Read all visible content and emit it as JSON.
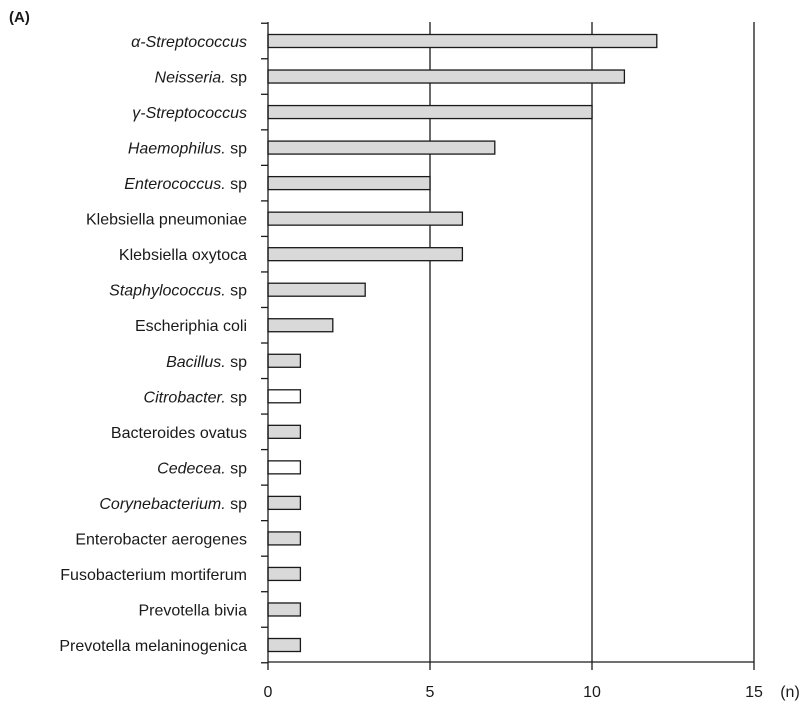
{
  "chart_data": {
    "type": "bar",
    "orientation": "horizontal",
    "panel_label": "(A)",
    "title": "",
    "xlabel": "(n)",
    "ylabel": "",
    "xlim": [
      0,
      15
    ],
    "x_ticks": [
      "0",
      "5",
      "10",
      "15"
    ],
    "grid": "vertical lines at 5, 10, 15",
    "legend": "none",
    "colors": {
      "filled_bar": "#d9d9d9",
      "open_bar": "#ffffff",
      "outline": "#1a1a1a"
    },
    "categories": [
      {
        "parts": [
          {
            "t": "α-Streptococcus",
            "i": true
          }
        ],
        "value": 12,
        "fill": "filled"
      },
      {
        "parts": [
          {
            "t": "Neisseria.",
            "i": true
          },
          {
            "t": " sp",
            "i": false
          }
        ],
        "value": 11,
        "fill": "filled"
      },
      {
        "parts": [
          {
            "t": "γ-Streptococcus",
            "i": true
          }
        ],
        "value": 10,
        "fill": "filled"
      },
      {
        "parts": [
          {
            "t": "Haemophilus.",
            "i": true
          },
          {
            "t": " sp",
            "i": false
          }
        ],
        "value": 7,
        "fill": "filled"
      },
      {
        "parts": [
          {
            "t": "Enterococcus.",
            "i": true
          },
          {
            "t": " sp",
            "i": false
          }
        ],
        "value": 5,
        "fill": "filled"
      },
      {
        "parts": [
          {
            "t": "Klebsiella pneumoniae",
            "i": false
          }
        ],
        "value": 6,
        "fill": "filled"
      },
      {
        "parts": [
          {
            "t": "Klebsiella oxytoca",
            "i": false
          }
        ],
        "value": 6,
        "fill": "filled"
      },
      {
        "parts": [
          {
            "t": "Staphylococcus.",
            "i": true
          },
          {
            "t": " sp",
            "i": false
          }
        ],
        "value": 3,
        "fill": "filled"
      },
      {
        "parts": [
          {
            "t": "Escheriphia coli",
            "i": false
          }
        ],
        "value": 2,
        "fill": "filled"
      },
      {
        "parts": [
          {
            "t": "Bacillus.",
            "i": true
          },
          {
            "t": " sp",
            "i": false
          }
        ],
        "value": 1,
        "fill": "filled"
      },
      {
        "parts": [
          {
            "t": "Citrobacter.",
            "i": true
          },
          {
            "t": " sp",
            "i": false
          }
        ],
        "value": 1,
        "fill": "open"
      },
      {
        "parts": [
          {
            "t": "Bacteroides ovatus",
            "i": false
          }
        ],
        "value": 1,
        "fill": "filled"
      },
      {
        "parts": [
          {
            "t": "Cedecea.",
            "i": true
          },
          {
            "t": " sp",
            "i": false
          }
        ],
        "value": 1,
        "fill": "open"
      },
      {
        "parts": [
          {
            "t": "Corynebacterium.",
            "i": true
          },
          {
            "t": " sp",
            "i": false
          }
        ],
        "value": 1,
        "fill": "filled"
      },
      {
        "parts": [
          {
            "t": "Enterobacter aerogenes",
            "i": false
          }
        ],
        "value": 1,
        "fill": "filled"
      },
      {
        "parts": [
          {
            "t": "Fusobacterium mortiferum",
            "i": false
          }
        ],
        "value": 1,
        "fill": "filled"
      },
      {
        "parts": [
          {
            "t": "Prevotella bivia",
            "i": false
          }
        ],
        "value": 1,
        "fill": "filled"
      },
      {
        "parts": [
          {
            "t": "Prevotella melaninogenica",
            "i": false
          }
        ],
        "value": 1,
        "fill": "filled"
      }
    ]
  }
}
